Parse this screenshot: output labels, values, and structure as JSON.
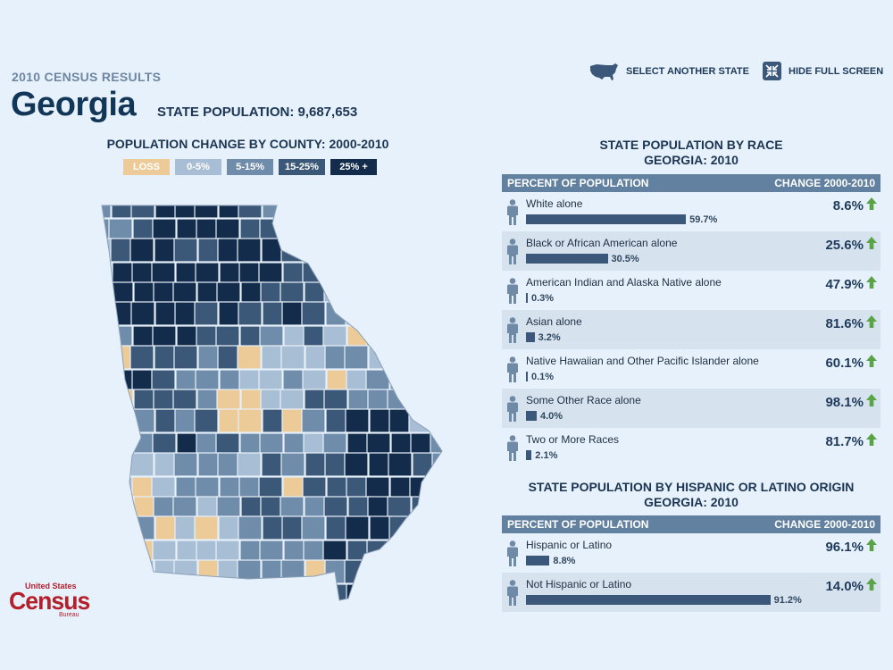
{
  "header": {
    "census_label": "2010 CENSUS RESULTS",
    "state": "Georgia",
    "population_label": "STATE POPULATION: 9,687,653",
    "select_state": "SELECT ANOTHER STATE",
    "hide_full_screen": "HIDE FULL SCREEN"
  },
  "map": {
    "title": "POPULATION CHANGE BY COUNTY: 2000-2010",
    "legend": [
      {
        "label": "LOSS",
        "color": "#edcb98"
      },
      {
        "label": "0-5%",
        "color": "#a8bed5"
      },
      {
        "label": "5-15%",
        "color": "#6f8cab"
      },
      {
        "label": "15-25%",
        "color": "#3b5878"
      },
      {
        "label": "25% +",
        "color": "#142c4b"
      }
    ]
  },
  "race": {
    "title_line1": "STATE POPULATION BY RACE",
    "title_line2": "GEORGIA: 2010",
    "col_percent": "PERCENT OF POPULATION",
    "col_change": "CHANGE 2000-2010",
    "rows": [
      {
        "label": "White alone",
        "percent": "59.7%",
        "value": 59.7,
        "change": "8.6%"
      },
      {
        "label": "Black or African American alone",
        "percent": "30.5%",
        "value": 30.5,
        "change": "25.6%"
      },
      {
        "label": "American Indian and Alaska Native alone",
        "percent": "0.3%",
        "value": 0.3,
        "change": "47.9%"
      },
      {
        "label": "Asian alone",
        "percent": "3.2%",
        "value": 3.2,
        "change": "81.6%"
      },
      {
        "label": "Native Hawaiian and Other Pacific Islander alone",
        "percent": "0.1%",
        "value": 0.1,
        "change": "60.1%"
      },
      {
        "label": "Some Other Race alone",
        "percent": "4.0%",
        "value": 4.0,
        "change": "98.1%"
      },
      {
        "label": "Two or More Races",
        "percent": "2.1%",
        "value": 2.1,
        "change": "81.7%"
      }
    ]
  },
  "hispanic": {
    "title_line1": "STATE POPULATION BY HISPANIC OR LATINO ORIGIN",
    "title_line2": "GEORGIA: 2010",
    "col_percent": "PERCENT OF POPULATION",
    "col_change": "CHANGE 2000-2010",
    "rows": [
      {
        "label": "Hispanic or Latino",
        "percent": "8.8%",
        "value": 8.8,
        "change": "96.1%"
      },
      {
        "label": "Not Hispanic or Latino",
        "percent": "91.2%",
        "value": 91.2,
        "change": "14.0%"
      }
    ]
  },
  "logo": {
    "line1": "United States",
    "line2": "Census",
    "line3": "Bureau"
  },
  "colors": {
    "bar": "#3b577a",
    "arrow": "#5aa346",
    "header_bg": "#62809f"
  }
}
